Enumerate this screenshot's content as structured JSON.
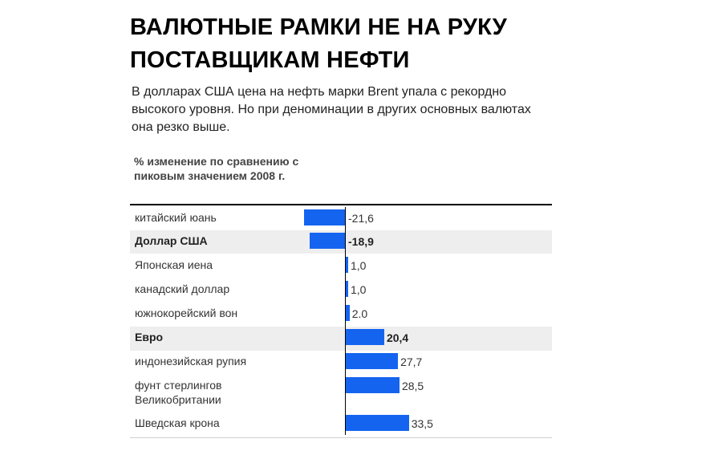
{
  "title": "ВАЛЮТНЫЕ РАМКИ НЕ НА РУКУ ПОСТАВЩИКАМ НЕФТИ",
  "subtitle": "В долларах США цена на нефть марки Brent упала с рекордно высокого уровня. Но при деноминации в других основных валютах она резко выше.",
  "column_header": "% изменение по сравнению с пиковым значением 2008 г.",
  "colors": {
    "bar": "#1464f0",
    "highlight_row": "#eeeeee"
  },
  "chart_data": {
    "type": "bar",
    "orientation": "horizontal",
    "title": "ВАЛЮТНЫЕ РАМКИ НЕ НА РУКУ ПОСТАВЩИКАМ НЕФТИ",
    "xlabel": "% изменение по сравнению с пиковым значением 2008 г.",
    "xlim": [
      -25,
      40
    ],
    "categories": [
      "китайский юань",
      "Доллар США",
      "Японская иена",
      "канадский доллар",
      "южнокорейский вон",
      "Евро",
      "индонезийская рупия",
      "фунт стерлингов Великобритании",
      "Шведская крона"
    ],
    "values": [
      -21.6,
      -18.9,
      1.0,
      1.0,
      2.0,
      20.4,
      27.7,
      28.5,
      33.5
    ],
    "value_labels": [
      "-21,6",
      "-18,9",
      "1,0",
      "1,0",
      "2.0",
      "20,4",
      "27,7",
      "28,5",
      "33,5"
    ],
    "bold_rows": [
      1,
      5
    ],
    "highlighted_rows": [
      1,
      5
    ]
  }
}
